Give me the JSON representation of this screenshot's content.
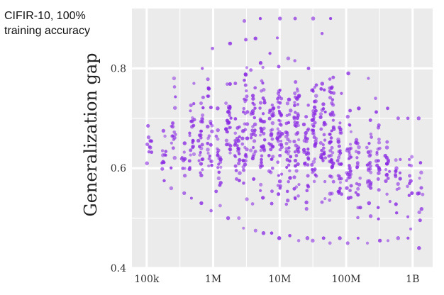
{
  "annotation": {
    "line1": "CIFIR-10, 100%",
    "line2": "training accuracy"
  },
  "chart_data": {
    "type": "scatter",
    "title": "",
    "xlabel": "",
    "ylabel": "Generalization gap",
    "x_scale": "log",
    "xlim": [
      60000,
      2000000000
    ],
    "ylim": [
      0.4,
      0.92
    ],
    "x_ticks": [
      100000,
      1000000,
      10000000,
      100000000,
      1000000000
    ],
    "x_tick_labels": [
      "100k",
      "1M",
      "10M",
      "100M",
      "1B"
    ],
    "y_ticks": [
      0.4,
      0.6,
      0.8
    ],
    "y_tick_labels": [
      "0.4",
      "0.6",
      "0.8"
    ],
    "grid": true,
    "point_color": "#8a2be2",
    "columns": [
      {
        "x": 110000,
        "ymin": 0.61,
        "ymax": 0.685,
        "n": 10
      },
      {
        "x": 180000,
        "ymin": 0.575,
        "ymax": 0.675,
        "n": 12
      },
      {
        "x": 250000,
        "ymin": 0.56,
        "ymax": 0.78,
        "n": 18
      },
      {
        "x": 350000,
        "ymin": 0.55,
        "ymax": 0.65,
        "n": 10
      },
      {
        "x": 480000,
        "ymin": 0.54,
        "ymax": 0.77,
        "n": 24
      },
      {
        "x": 650000,
        "ymin": 0.53,
        "ymax": 0.8,
        "n": 28
      },
      {
        "x": 900000,
        "ymin": 0.515,
        "ymax": 0.84,
        "n": 26
      },
      {
        "x": 1200000,
        "ymin": 0.525,
        "ymax": 0.72,
        "n": 22
      },
      {
        "x": 1700000,
        "ymin": 0.5,
        "ymax": 0.85,
        "n": 34
      },
      {
        "x": 2300000,
        "ymin": 0.5,
        "ymax": 0.77,
        "n": 28
      },
      {
        "x": 3000000,
        "ymin": 0.48,
        "ymax": 0.895,
        "n": 38
      },
      {
        "x": 4000000,
        "ymin": 0.475,
        "ymax": 0.86,
        "n": 32
      },
      {
        "x": 5500000,
        "ymin": 0.47,
        "ymax": 0.9,
        "n": 44
      },
      {
        "x": 7500000,
        "ymin": 0.47,
        "ymax": 0.83,
        "n": 34
      },
      {
        "x": 10000000,
        "ymin": 0.46,
        "ymax": 0.9,
        "n": 48
      },
      {
        "x": 13500000,
        "ymin": 0.465,
        "ymax": 0.82,
        "n": 32
      },
      {
        "x": 18000000,
        "ymin": 0.455,
        "ymax": 0.9,
        "n": 50
      },
      {
        "x": 25000000,
        "ymin": 0.46,
        "ymax": 0.8,
        "n": 32
      },
      {
        "x": 33000000,
        "ymin": 0.455,
        "ymax": 0.9,
        "n": 46
      },
      {
        "x": 45000000,
        "ymin": 0.46,
        "ymax": 0.87,
        "n": 34
      },
      {
        "x": 60000000,
        "ymin": 0.45,
        "ymax": 0.9,
        "n": 48
      },
      {
        "x": 80000000,
        "ymin": 0.46,
        "ymax": 0.75,
        "n": 32
      },
      {
        "x": 110000000,
        "ymin": 0.45,
        "ymax": 0.79,
        "n": 34
      },
      {
        "x": 150000000,
        "ymin": 0.46,
        "ymax": 0.72,
        "n": 22
      },
      {
        "x": 220000000,
        "ymin": 0.45,
        "ymax": 0.78,
        "n": 28
      },
      {
        "x": 300000000,
        "ymin": 0.455,
        "ymax": 0.74,
        "n": 22
      },
      {
        "x": 420000000,
        "ymin": 0.455,
        "ymax": 0.72,
        "n": 18
      },
      {
        "x": 600000000,
        "ymin": 0.46,
        "ymax": 0.7,
        "n": 16
      },
      {
        "x": 900000000,
        "ymin": 0.46,
        "ymax": 0.7,
        "n": 14
      },
      {
        "x": 1300000000,
        "ymin": 0.44,
        "ymax": 0.7,
        "n": 12
      }
    ]
  }
}
